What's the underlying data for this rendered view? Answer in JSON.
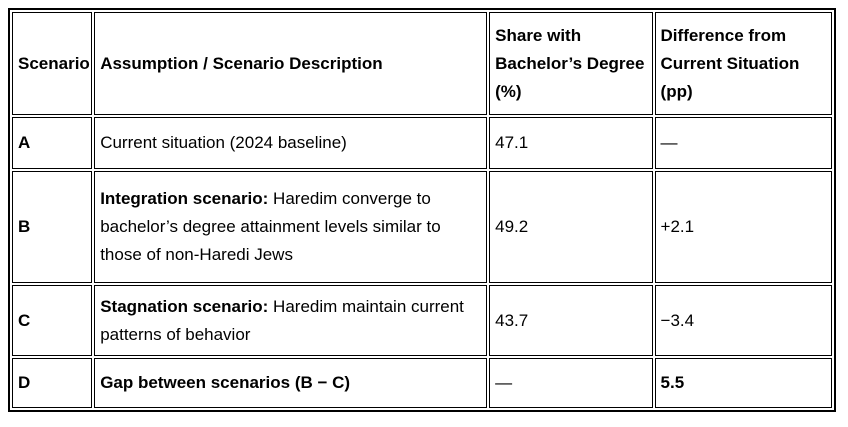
{
  "table": {
    "columns": {
      "scenario": "Scenario",
      "description": "Assumption / Scenario Description",
      "share": "Share with Bachelor’s Degree (%)",
      "difference": "Difference from Current Situation (pp)"
    },
    "rows": [
      {
        "scenario": "A",
        "description_lead": "",
        "description_rest": "Current situation (2024 baseline)",
        "share": "47.1",
        "difference": "—"
      },
      {
        "scenario": "B",
        "description_lead": "Integration scenario:",
        "description_rest": " Haredim converge to bachelor’s degree attainment levels similar to those of non-Haredi Jews",
        "share": "49.2",
        "difference": "+2.1"
      },
      {
        "scenario": "C",
        "description_lead": "Stagnation scenario:",
        "description_rest": " Haredim maintain current patterns of behavior",
        "share": "43.7",
        "difference": "−3.4"
      },
      {
        "scenario": "D",
        "description_lead": "Gap between scenarios (B − C)",
        "description_rest": "",
        "share": "—",
        "difference": "5.5"
      }
    ]
  },
  "colors": {
    "border": "#000000",
    "background": "#ffffff",
    "text": "#000000"
  }
}
